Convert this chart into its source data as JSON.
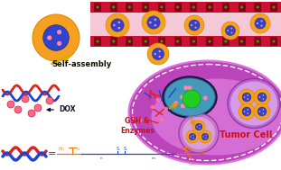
{
  "bg_color": "#ffffff",
  "cell_color_outer": "#bb44bb",
  "cell_color_inner": "#dd77dd",
  "cell_color_light": "#ee99ee",
  "blood_vessel_pink": "#f5c8d8",
  "blood_vessel_red": "#cc1133",
  "np_orange": "#f5a020",
  "np_orange_edge": "#dd8800",
  "np_blue": "#3344cc",
  "np_blue_dark": "#112288",
  "np_pink_dot": "#ff88aa",
  "poly_red": "#dd2222",
  "poly_blue": "#2244cc",
  "poly_orange": "#ee7700",
  "nucleus_teal": "#4499bb",
  "nucleus_dark": "#223355",
  "nucleus_green": "#22cc22",
  "nucleus_green_dark": "#119911",
  "endo_purple": "#cc77cc",
  "endo_light": "#ddaadd",
  "cluster_purple": "#bb66cc",
  "cluster_light": "#ddaaee",
  "arrow_orange": "#dd9900",
  "text_self_assembly": "Self-assembly",
  "text_dox": "DOX",
  "text_gsh": "GSH &\nEnzymes",
  "text_tumor": "Tumor Cell",
  "figsize": [
    3.11,
    1.89
  ],
  "dpi": 100
}
